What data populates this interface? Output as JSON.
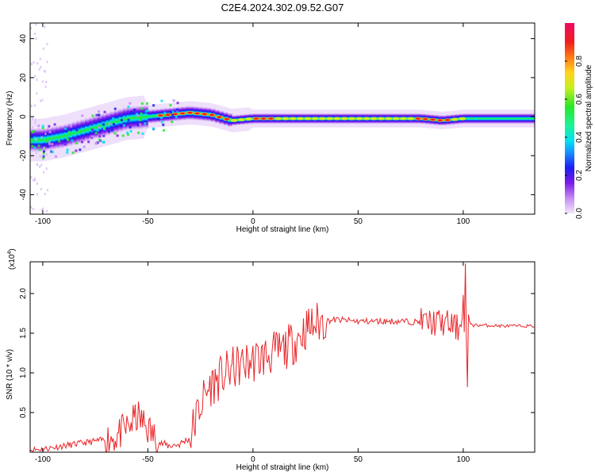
{
  "title": "C2E4.2024.302.09.52.G07",
  "colors": {
    "snr_line": "#e8262a",
    "axis": "#000000"
  },
  "chart_data": [
    {
      "type": "heatmap",
      "xlabel": "Height of straight line (km)",
      "ylabel": "Frequency (Hz)",
      "xlim": [
        -106,
        134
      ],
      "ylim": [
        -50,
        48
      ],
      "x_ticks": [
        "-100",
        "-50",
        "0",
        "50",
        "100"
      ],
      "y_ticks": [
        "-40",
        "-20",
        "0",
        "20",
        "40"
      ],
      "colorbar": {
        "label": "Normalized spectral amplitude",
        "range": [
          0,
          1
        ],
        "ticks": [
          "0.0",
          "0.2",
          "0.4",
          "0.6",
          "0.8"
        ]
      },
      "ridge": {
        "x": [
          -106,
          -100,
          -90,
          -80,
          -70,
          -60,
          -50,
          -40,
          -30,
          -20,
          -10,
          0,
          10,
          20,
          30,
          40,
          50,
          60,
          70,
          80,
          90,
          100,
          110,
          120,
          134
        ],
        "frequency": [
          -12,
          -12,
          -10,
          -7,
          -4,
          -1,
          0,
          1,
          2,
          1,
          -2,
          -1,
          -1,
          -1,
          -1,
          -1,
          -1,
          -1,
          -1,
          -1,
          -2,
          -1,
          -1,
          -1,
          -1
        ]
      }
    },
    {
      "type": "line",
      "xlabel": "Height of straight line (km)",
      "ylabel": "SNR (10 * v/v)",
      "y_multiplier": "(x10",
      "y_multiplier_exp": "4",
      "xlim": [
        -106,
        134
      ],
      "ylim": [
        0,
        2.4
      ],
      "x_ticks": [
        "-100",
        "-50",
        "0",
        "50",
        "100"
      ],
      "y_ticks": [
        "0.5",
        "1.0",
        "1.5",
        "2.0"
      ],
      "series": [
        {
          "x": [
            -106,
            -100,
            -90,
            -80,
            -70,
            -65,
            -60,
            -55,
            -50,
            -45,
            -40,
            -35,
            -30,
            -28,
            -25,
            -22,
            -20,
            -15,
            -10,
            -5,
            0,
            5,
            10,
            15,
            20,
            25,
            30,
            35,
            40,
            45,
            50,
            60,
            70,
            80,
            90,
            95,
            98,
            100,
            101,
            102,
            105,
            110,
            120,
            134
          ],
          "y": [
            0.03,
            0.04,
            0.08,
            0.12,
            0.16,
            0.2,
            0.3,
            0.45,
            0.3,
            0.12,
            0.08,
            0.1,
            0.18,
            0.35,
            0.6,
            0.75,
            0.85,
            0.95,
            1.05,
            1.1,
            1.15,
            1.2,
            1.25,
            1.3,
            1.4,
            1.55,
            1.62,
            1.66,
            1.67,
            1.66,
            1.65,
            1.65,
            1.65,
            1.64,
            1.63,
            1.6,
            1.55,
            1.9,
            1.1,
            1.65,
            1.6,
            1.6,
            1.59,
            1.59
          ]
        }
      ]
    }
  ]
}
